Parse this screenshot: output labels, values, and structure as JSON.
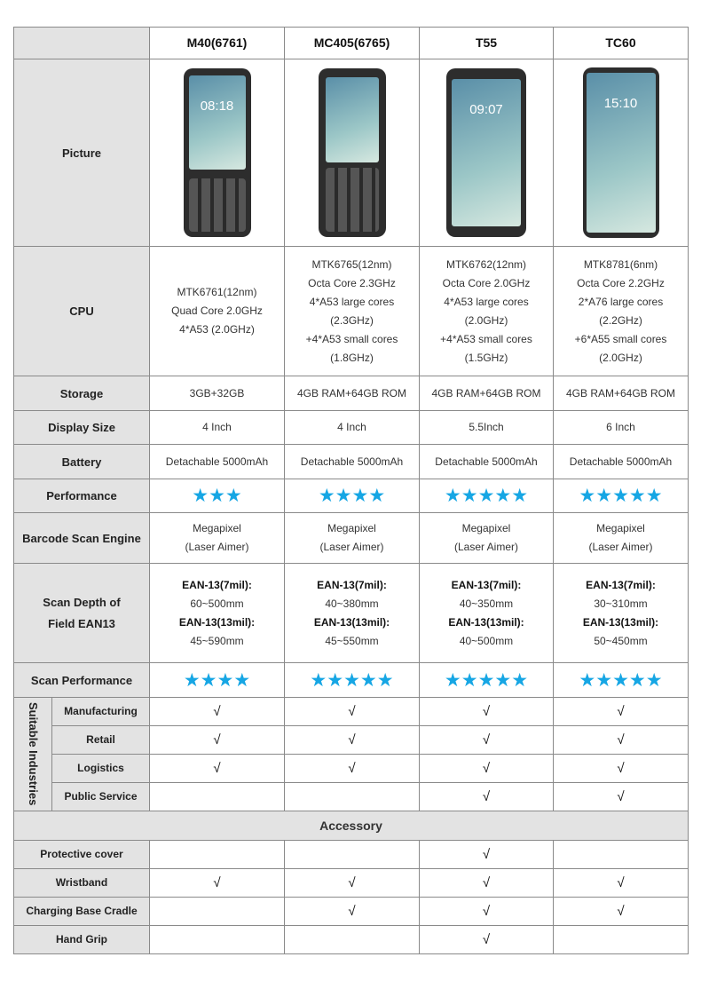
{
  "models": [
    "M40(6761)",
    "MC405(6765)",
    "T55",
    "TC60"
  ],
  "rows": {
    "picture": "Picture",
    "cpu": {
      "label": "CPU",
      "values": [
        [
          "MTK6761(12nm)",
          "Quad Core 2.0GHz",
          "4*A53  (2.0GHz)"
        ],
        [
          "MTK6765(12nm)",
          "Octa Core 2.3GHz",
          "4*A53 large cores",
          "(2.3GHz)",
          "+4*A53 small cores",
          "(1.8GHz)"
        ],
        [
          "MTK6762(12nm)",
          "Octa Core 2.0GHz",
          "4*A53 large cores",
          "(2.0GHz)",
          "+4*A53 small cores",
          "(1.5GHz)"
        ],
        [
          "MTK8781(6nm)",
          "Octa Core 2.2GHz",
          "2*A76 large cores",
          "(2.2GHz)",
          "+6*A55 small cores",
          "(2.0GHz)"
        ]
      ]
    },
    "storage": {
      "label": "Storage",
      "values": [
        "3GB+32GB",
        "4GB RAM+64GB ROM",
        "4GB RAM+64GB ROM",
        "4GB RAM+64GB ROM"
      ]
    },
    "display": {
      "label": "Display Size",
      "values": [
        "4 Inch",
        "4 Inch",
        "5.5Inch",
        "6 Inch"
      ]
    },
    "battery": {
      "label": "Battery",
      "values": [
        "Detachable 5000mAh",
        "Detachable 5000mAh",
        "Detachable 5000mAh",
        "Detachable 5000mAh"
      ]
    },
    "performance": {
      "label": "Performance",
      "stars": [
        3,
        4,
        5,
        5
      ]
    },
    "engine": {
      "label": "Barcode Scan Engine",
      "values": [
        [
          "Megapixel",
          "(Laser Aimer)"
        ],
        [
          "Megapixel",
          "(Laser Aimer)"
        ],
        [
          "Megapixel",
          "(Laser Aimer)"
        ],
        [
          "Megapixel",
          "(Laser Aimer)"
        ]
      ]
    },
    "depth": {
      "label_lines": [
        "Scan Depth of",
        "Field EAN13"
      ],
      "h7": "EAN-13(7mil):",
      "h13": "EAN-13(13mil):",
      "v7": [
        "60~500mm",
        "40~380mm",
        "40~350mm",
        "30~310mm"
      ],
      "v13": [
        "45~590mm",
        "45~550mm",
        "40~500mm",
        "50~450mm"
      ]
    },
    "scan_performance": {
      "label": "Scan Performance",
      "stars": [
        4,
        5,
        5,
        5
      ]
    }
  },
  "star_color": "#16a6e4",
  "check": "√",
  "industries": {
    "label": "Suitable Industries",
    "items": [
      {
        "label": "Manufacturing",
        "checks": [
          true,
          true,
          true,
          true
        ]
      },
      {
        "label": "Retail",
        "checks": [
          true,
          true,
          true,
          true
        ]
      },
      {
        "label": "Logistics",
        "checks": [
          true,
          true,
          true,
          true
        ]
      },
      {
        "label": "Public Service",
        "checks": [
          false,
          false,
          true,
          true
        ]
      }
    ]
  },
  "accessory": {
    "label": "Accessory",
    "items": [
      {
        "label": "Protective cover",
        "checks": [
          false,
          false,
          true,
          false
        ]
      },
      {
        "label": "Wristband",
        "checks": [
          true,
          true,
          true,
          true
        ]
      },
      {
        "label": "Charging Base Cradle",
        "checks": [
          false,
          true,
          true,
          true
        ]
      },
      {
        "label": "Hand Grip",
        "checks": [
          false,
          false,
          true,
          false
        ]
      }
    ]
  },
  "phone_screens": {
    "m40": "08:18",
    "t55": "09:07",
    "tc60": "15:10"
  }
}
